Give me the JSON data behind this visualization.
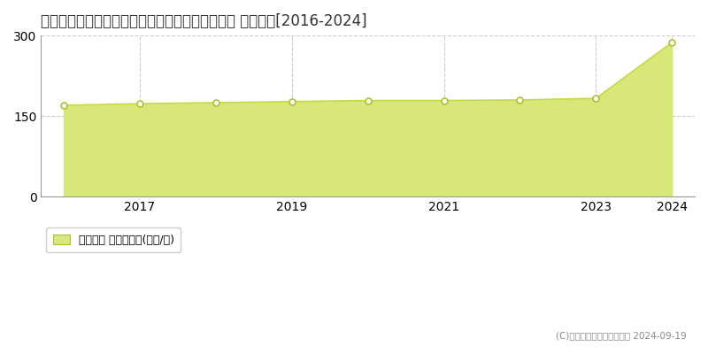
{
  "title": "東京都目黒区大岡山１丁目８６番１８　公示地価 地価推移[2016-2024]",
  "years": [
    2016,
    2017,
    2018,
    2019,
    2020,
    2021,
    2022,
    2023,
    2024
  ],
  "values": [
    170,
    173,
    175,
    177,
    179,
    179,
    180,
    183,
    287
  ],
  "line_color": "#c8d840",
  "fill_color": "#d8e878",
  "marker_fill_color": "#ffffff",
  "marker_edge_color": "#b0c030",
  "background_color": "#ffffff",
  "plot_bg_color": "#ffffff",
  "ylim": [
    0,
    300
  ],
  "yticks": [
    0,
    150,
    300
  ],
  "xlim_left": 2015.7,
  "xlim_right": 2024.3,
  "x_ticks": [
    2017,
    2019,
    2021,
    2023,
    2024
  ],
  "legend_label": "公示地価 平均嵪単価(万円/嵪)",
  "copyright_text": "(C)土地価格ドットコム　　 2024-09-19",
  "title_fontsize": 12,
  "tick_fontsize": 10,
  "legend_fontsize": 9,
  "grid_color": "#cccccc",
  "grid_linestyle": "--",
  "spine_color": "#999999"
}
